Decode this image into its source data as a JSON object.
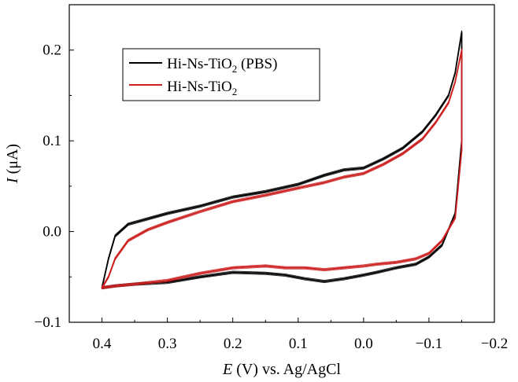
{
  "chart_data": {
    "type": "line",
    "xlabel_italic": "E",
    "xlabel_rest": " (V) vs. Ag/AgCl",
    "ylabel_italic": "I",
    "ylabel_rest": " (μA)",
    "xlim": [
      0.45,
      -0.2
    ],
    "ylim": [
      -0.1,
      0.25
    ],
    "x_ticks": [
      0.4,
      0.3,
      0.2,
      0.1,
      0.0,
      -0.1,
      -0.2
    ],
    "x_tick_labels": [
      "0.4",
      "0.3",
      "0.2",
      "0.1",
      "0.0",
      "−0.1",
      "−0.2"
    ],
    "y_ticks": [
      -0.1,
      0.0,
      0.1,
      0.2
    ],
    "y_tick_labels": [
      "−0.1",
      "0.0",
      "0.1",
      "0.2"
    ],
    "grid": false,
    "legend_position": "top-left",
    "series": [
      {
        "name": "Hi-Ns-TiO2 (PBS)",
        "legend_main": "Hi-Ns-TiO",
        "legend_sub": "2",
        "legend_tail": " (PBS)",
        "color": "#000000",
        "x": [
          0.4,
          0.39,
          0.38,
          0.36,
          0.33,
          0.3,
          0.25,
          0.2,
          0.15,
          0.1,
          0.06,
          0.03,
          0.0,
          -0.03,
          -0.06,
          -0.09,
          -0.11,
          -0.13,
          -0.14,
          -0.15,
          -0.15,
          -0.14,
          -0.12,
          -0.1,
          -0.08,
          -0.05,
          -0.02,
          0.0,
          0.03,
          0.06,
          0.09,
          0.12,
          0.15,
          0.2,
          0.25,
          0.3,
          0.35,
          0.38,
          0.4
        ],
        "y": [
          -0.062,
          -0.03,
          -0.005,
          0.008,
          0.014,
          0.02,
          0.028,
          0.038,
          0.044,
          0.052,
          0.062,
          0.068,
          0.07,
          0.08,
          0.092,
          0.11,
          0.128,
          0.15,
          0.175,
          0.22,
          0.1,
          0.02,
          -0.015,
          -0.028,
          -0.036,
          -0.04,
          -0.045,
          -0.048,
          -0.052,
          -0.055,
          -0.052,
          -0.048,
          -0.046,
          -0.045,
          -0.05,
          -0.056,
          -0.058,
          -0.06,
          -0.062
        ]
      },
      {
        "name": "Hi-Ns-TiO2",
        "legend_main": "Hi-Ns-TiO",
        "legend_sub": "2",
        "legend_tail": "",
        "color": "#cc1f1f",
        "x": [
          0.4,
          0.39,
          0.38,
          0.36,
          0.33,
          0.3,
          0.25,
          0.2,
          0.15,
          0.1,
          0.06,
          0.03,
          0.0,
          -0.03,
          -0.06,
          -0.09,
          -0.11,
          -0.13,
          -0.14,
          -0.15,
          -0.15,
          -0.14,
          -0.12,
          -0.1,
          -0.08,
          -0.05,
          -0.02,
          0.0,
          0.03,
          0.06,
          0.09,
          0.12,
          0.15,
          0.2,
          0.25,
          0.3,
          0.35,
          0.38,
          0.4
        ],
        "y": [
          -0.062,
          -0.05,
          -0.03,
          -0.01,
          0.002,
          0.01,
          0.022,
          0.033,
          0.04,
          0.048,
          0.054,
          0.06,
          0.064,
          0.074,
          0.086,
          0.102,
          0.12,
          0.142,
          0.165,
          0.2,
          0.09,
          0.015,
          -0.01,
          -0.024,
          -0.03,
          -0.034,
          -0.036,
          -0.038,
          -0.04,
          -0.042,
          -0.04,
          -0.04,
          -0.038,
          -0.04,
          -0.046,
          -0.054,
          -0.058,
          -0.06,
          -0.062
        ]
      }
    ]
  }
}
